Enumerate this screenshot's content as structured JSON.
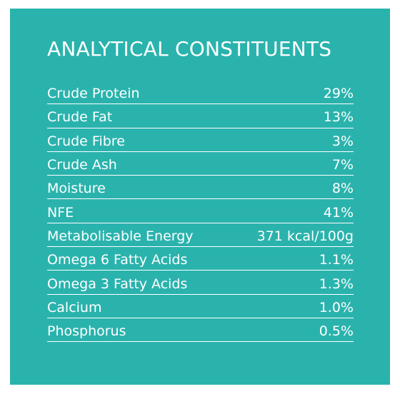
{
  "title": "ANALYTICAL CONSTITUENTS",
  "colors": {
    "panel_background": "#2ab3ad",
    "text": "#ffffff"
  },
  "rows": [
    {
      "label": "Crude Protein",
      "value": "29%"
    },
    {
      "label": "Crude Fat",
      "value": "13%"
    },
    {
      "label": "Crude Fibre",
      "value": "3%"
    },
    {
      "label": "Crude Ash",
      "value": "7%"
    },
    {
      "label": "Moisture",
      "value": "8%"
    },
    {
      "label": "NFE",
      "value": "41%"
    },
    {
      "label": "Metabolisable Energy",
      "value": "371 kcal/100g"
    },
    {
      "label": "Omega 6 Fatty Acids",
      "value": "1.1%"
    },
    {
      "label": "Omega 3 Fatty Acids",
      "value": "1.3%"
    },
    {
      "label": "Calcium",
      "value": "1.0%"
    },
    {
      "label": "Phosphorus",
      "value": "0.5%"
    }
  ]
}
